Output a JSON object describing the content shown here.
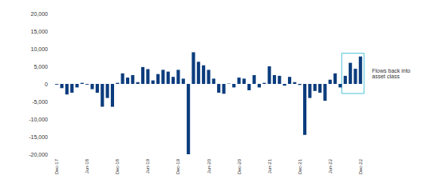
{
  "chart_data": {
    "type": "bar",
    "categories": [
      "Dec-17",
      null,
      null,
      null,
      null,
      null,
      "Jun-18",
      null,
      null,
      null,
      null,
      null,
      "Dec-18",
      null,
      null,
      null,
      null,
      null,
      "Jun-19",
      null,
      null,
      null,
      null,
      null,
      "Dec-19",
      null,
      null,
      null,
      null,
      null,
      "Jun-20",
      null,
      null,
      null,
      null,
      null,
      "Dec-20",
      null,
      null,
      null,
      null,
      null,
      "Jun-21",
      null,
      null,
      null,
      null,
      null,
      "Dec-21",
      null,
      null,
      null,
      null,
      null,
      "Jun-22",
      null,
      null,
      null,
      null,
      null,
      "Dec-22"
    ],
    "values": [
      -200,
      -1200,
      -3000,
      -2500,
      -1000,
      300,
      -200,
      -1500,
      -2500,
      -6500,
      -4000,
      -6500,
      300,
      3000,
      1800,
      2500,
      500,
      4800,
      4200,
      1000,
      2800,
      4000,
      3500,
      2000,
      4000,
      1500,
      -20000,
      9000,
      6300,
      5300,
      4000,
      1500,
      -2500,
      -2800,
      100,
      -1000,
      1800,
      1500,
      -1800,
      2500,
      -1000,
      300,
      5000,
      2500,
      2300,
      -500,
      2000,
      500,
      -300,
      -14500,
      -4000,
      -2000,
      -2500,
      -4800,
      1200,
      3000,
      -1000,
      2300,
      6000,
      4300,
      7800
    ],
    "color": "#0b3c7d",
    "ylim": [
      -20000,
      20000
    ],
    "yticks": [
      {
        "value": -20000,
        "label": "-20,000"
      },
      {
        "value": -15000,
        "label": "-15,000"
      },
      {
        "value": -10000,
        "label": "-10,000"
      },
      {
        "value": -5000,
        "label": "-5,000"
      },
      0,
      {
        "value": 5000,
        "label": "5,000"
      },
      {
        "value": 10000,
        "label": "10,000"
      },
      {
        "value": 15000,
        "label": "15,000"
      },
      {
        "value": 20000,
        "label": "20,000"
      }
    ],
    "grid": false,
    "annotations": [
      {
        "text": "Flows back into asset class",
        "color": "#4fc3d9"
      }
    ]
  }
}
